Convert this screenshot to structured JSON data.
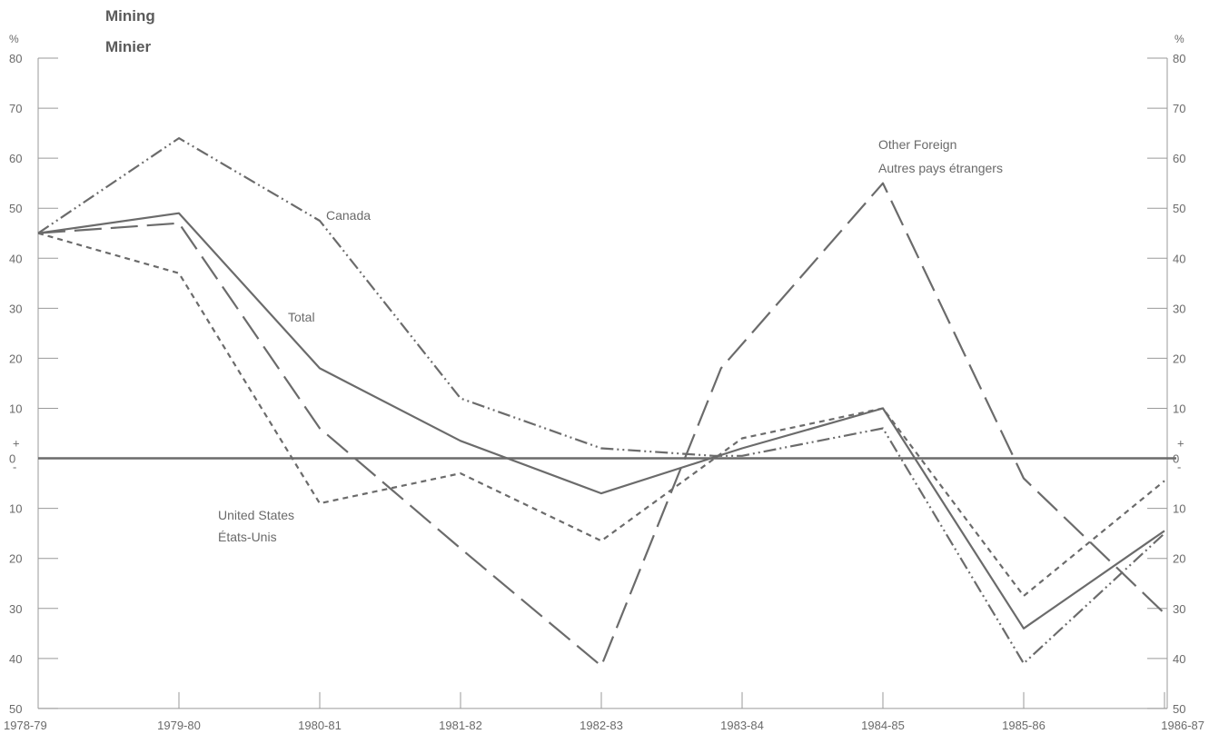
{
  "chart_data": {
    "type": "line",
    "title": "Mining",
    "subtitle": "Minier",
    "y_unit_label": "%",
    "categories": [
      "1978-79",
      "1979-80",
      "1980-81",
      "1981-82",
      "1982-83",
      "1983-84",
      "1984-85",
      "1985-86",
      "1986-87"
    ],
    "ylim": [
      -50,
      80
    ],
    "y_ticks": [
      80,
      70,
      60,
      50,
      40,
      30,
      20,
      10,
      0,
      -10,
      -20,
      -30,
      -40,
      -50
    ],
    "y_tick_labels": [
      "80",
      "70",
      "60",
      "50",
      "40",
      "30",
      "20",
      "10",
      "0",
      "10",
      "20",
      "30",
      "40",
      "50"
    ],
    "zero_line": true,
    "grid": false,
    "series": [
      {
        "name": "Total",
        "style": "solid",
        "color": "#6b6b6b",
        "x": [
          0,
          1,
          2,
          3,
          4,
          5,
          6,
          7,
          8
        ],
        "values": [
          45,
          49,
          18,
          3.5,
          -7,
          2,
          10,
          -34,
          -14.5
        ]
      },
      {
        "name": "Canada",
        "style": "dash-dot-dot",
        "color": "#6b6b6b",
        "x": [
          0,
          1,
          2,
          3,
          4,
          4.8,
          5,
          6,
          7,
          8
        ],
        "values": [
          45,
          64,
          47.5,
          12,
          2,
          0.5,
          0.5,
          6,
          -41,
          -15
        ]
      },
      {
        "name": "United States",
        "name_fr": "États-Unis",
        "style": "short-dash",
        "color": "#6b6b6b",
        "x": [
          0,
          1,
          2,
          3,
          4,
          5,
          6,
          7,
          8
        ],
        "values": [
          45,
          37,
          -9,
          -3,
          -16.5,
          4,
          10,
          -27.5,
          -4.5
        ]
      },
      {
        "name": "Other Foreign",
        "name_fr": "Autres pays étrangers",
        "style": "long-dash",
        "color": "#6b6b6b",
        "x": [
          0,
          1,
          2,
          3,
          4,
          4.85,
          6,
          7,
          8
        ],
        "values": [
          45,
          47,
          6,
          -18,
          -41.5,
          18,
          55,
          -4,
          -31
        ]
      }
    ],
    "annotations": {
      "canada": "Canada",
      "total": "Total",
      "us_en": "United States",
      "us_fr": "États-Unis",
      "other_en": "Other Foreign",
      "other_fr": "Autres pays étrangers"
    }
  }
}
